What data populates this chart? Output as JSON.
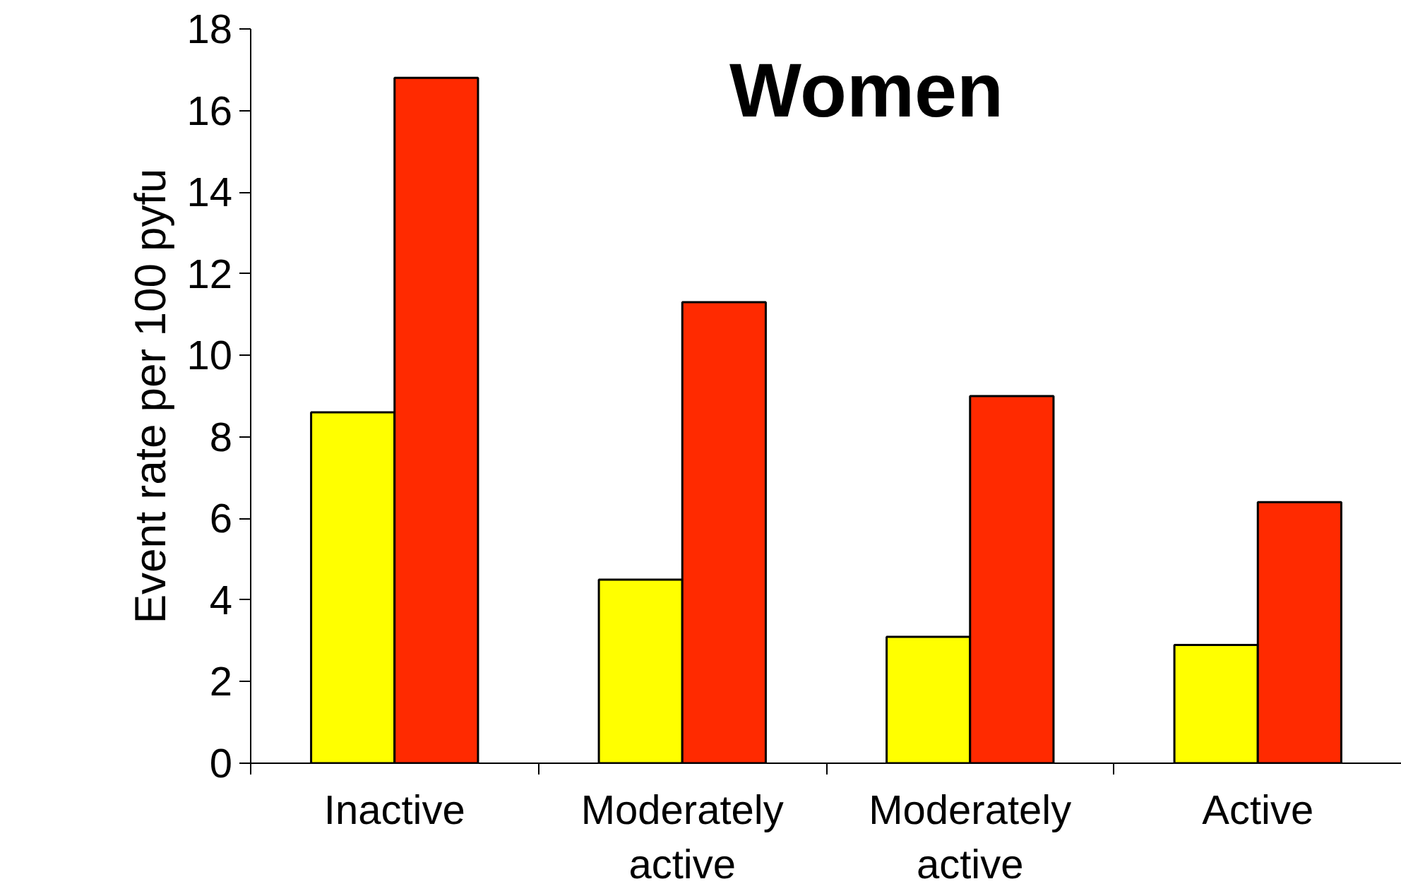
{
  "chart_data": {
    "type": "bar",
    "title": "Women",
    "ylabel": "Event rate per 100 pyfu",
    "categories": [
      "Inactive",
      "Moderately\nactive",
      "Moderately\nactive",
      "Active"
    ],
    "series": [
      {
        "color": "#ffff00",
        "values": [
          8.6,
          4.5,
          3.1,
          2.9
        ]
      },
      {
        "color": "#ff2a00",
        "values": [
          16.8,
          11.3,
          9.0,
          6.4
        ]
      }
    ],
    "ylim": [
      0,
      18
    ],
    "yticks": [
      0,
      2,
      4,
      6,
      8,
      10,
      12,
      14,
      16,
      18
    ],
    "grid": false
  }
}
